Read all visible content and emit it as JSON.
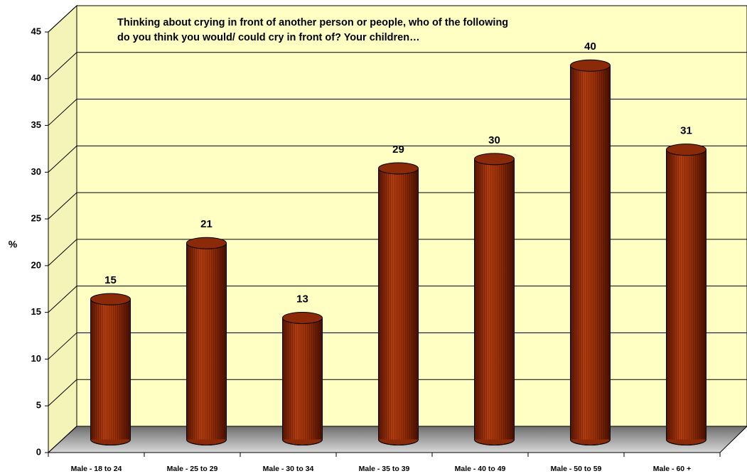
{
  "chart_data": {
    "type": "bar",
    "title": "Thinking about crying in front of another person or people, who of the following do you think you would/ could cry in front of? Your children…",
    "y_label": "%",
    "categories": [
      "Male - 18 to 24",
      "Male - 25 to 29",
      "Male - 30 to 34",
      "Male - 35 to 39",
      "Male - 40 to 49",
      "Male - 50 to 59",
      "Male - 60 +"
    ],
    "values": [
      15,
      21,
      13,
      29,
      30,
      40,
      31
    ],
    "color": "#8b2a08",
    "ylim": [
      0,
      45
    ],
    "yticks": [
      0,
      5,
      10,
      15,
      20,
      25,
      30,
      35,
      40,
      45
    ],
    "grid": true
  }
}
